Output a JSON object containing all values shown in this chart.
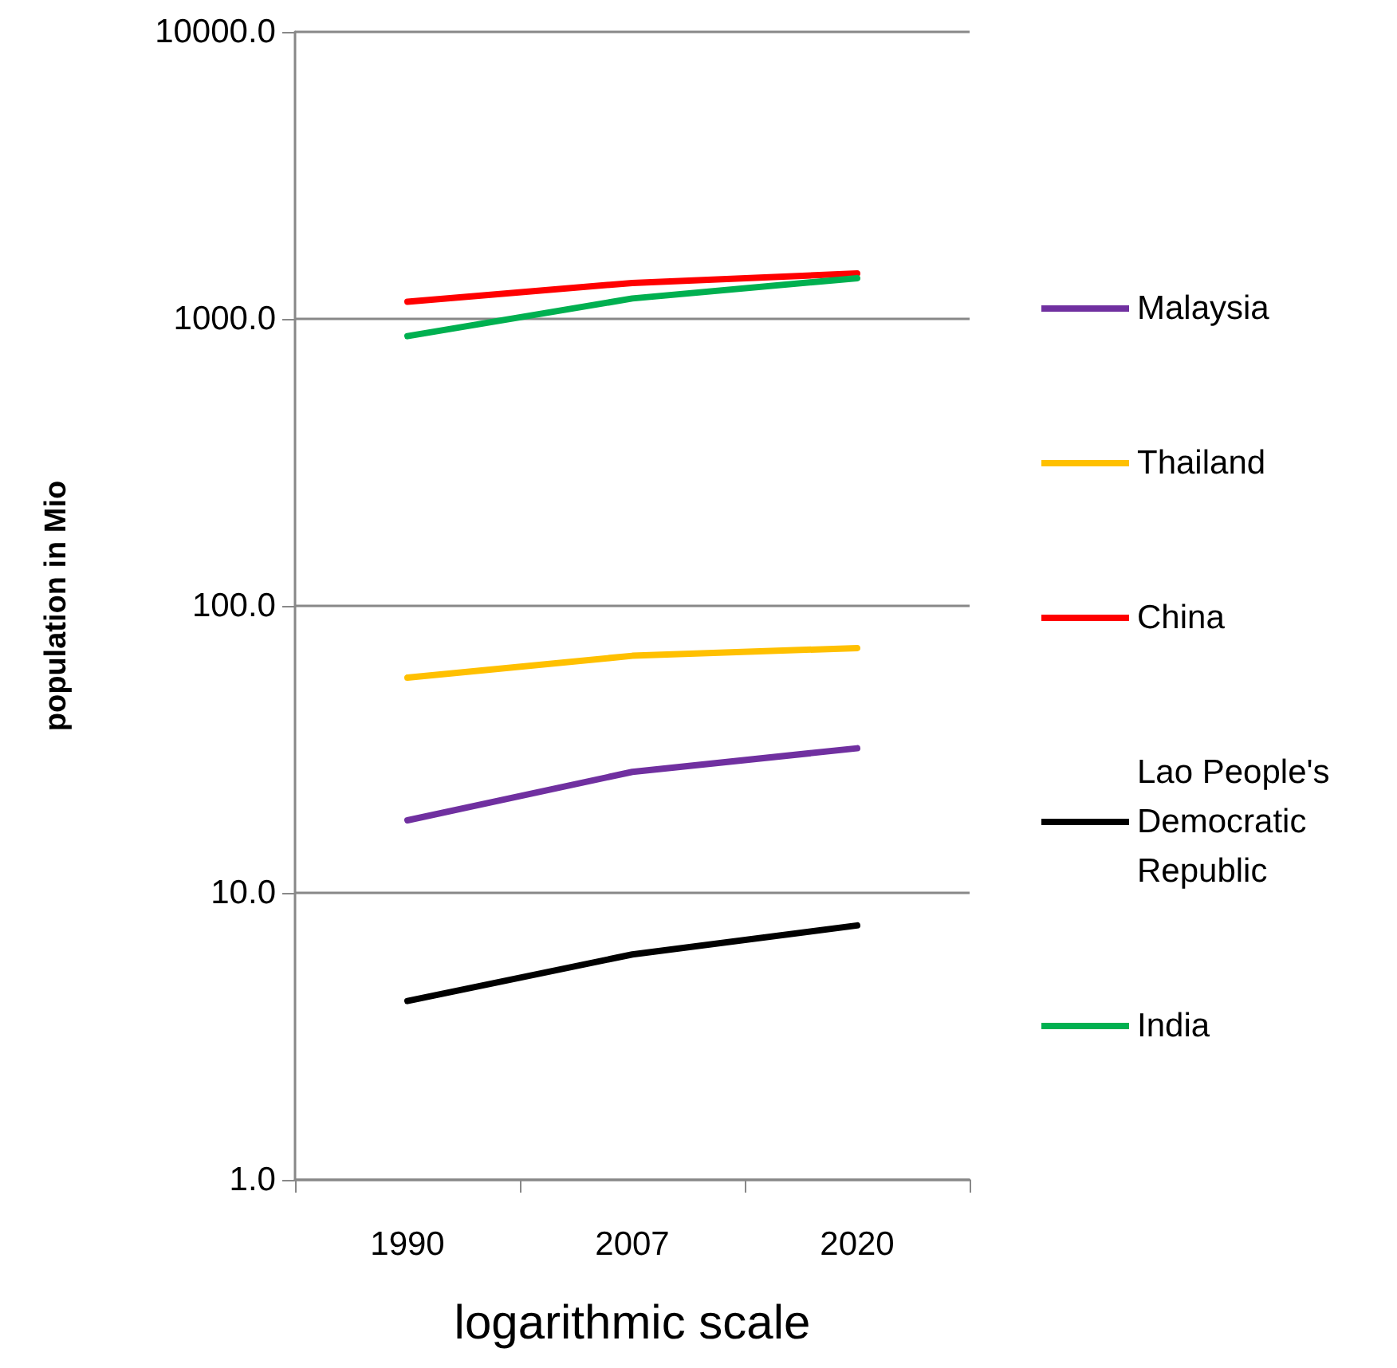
{
  "chart_data": {
    "type": "line",
    "xlabel": "logarithmic scale",
    "ylabel": "population in Mio",
    "categories": [
      "1990",
      "2007",
      "2020"
    ],
    "series": [
      {
        "name": "Malaysia",
        "color": "#7030a0",
        "values": [
          17.9,
          26.4,
          31.9
        ]
      },
      {
        "name": "Thailand",
        "color": "#ffc000",
        "values": [
          56.2,
          67,
          71.3
        ]
      },
      {
        "name": "China",
        "color": "#ff0000",
        "values": [
          1148,
          1334,
          1439
        ]
      },
      {
        "name": "Lao People's Democratic Republic",
        "color": "#000000",
        "values": [
          4.2,
          6.1,
          7.7
        ]
      },
      {
        "name": "India",
        "color": "#00b050",
        "values": [
          871,
          1178,
          1386
        ]
      }
    ],
    "log": "y",
    "ylim": [
      1,
      10000
    ],
    "yticks": [
      {
        "value": 1,
        "label": "1.0"
      },
      {
        "value": 10,
        "label": "10.0"
      },
      {
        "value": 100,
        "label": "100.0"
      },
      {
        "value": 1000,
        "label": "1000.0"
      },
      {
        "value": 10000,
        "label": "10000.0"
      }
    ],
    "grid": "y",
    "legend": "right",
    "marker": "none",
    "line_style": "solid"
  }
}
